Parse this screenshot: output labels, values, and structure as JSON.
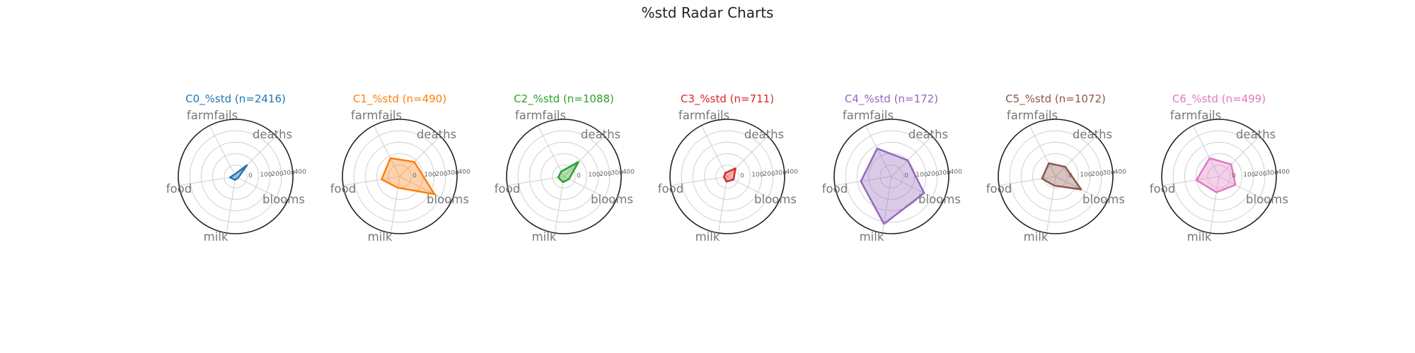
{
  "chart_data": {
    "type": "radar",
    "title": "%std Radar Charts",
    "axes": [
      "deaths",
      "farmfails",
      "food",
      "milk",
      "blooms"
    ],
    "r_ticks": [
      "0",
      "100",
      "200",
      "300",
      "400"
    ],
    "rlim": [
      -100,
      400
    ],
    "grid": true,
    "charts": [
      {
        "title": "C0_%std (n=2416)",
        "color": "#1f77b4",
        "values": {
          "deaths": 40,
          "farmfails": -80,
          "food": -50,
          "milk": -70,
          "blooms": -75
        }
      },
      {
        "title": "C1_%std (n=490)",
        "color": "#ff7f0e",
        "values": {
          "deaths": 80,
          "farmfails": 80,
          "food": 60,
          "milk": 0,
          "blooms": 240
        }
      },
      {
        "title": "C2_%std (n=1088)",
        "color": "#2ca02c",
        "values": {
          "deaths": 80,
          "farmfails": -50,
          "food": -50,
          "milk": -50,
          "blooms": -50
        }
      },
      {
        "title": "C3_%std (n=711)",
        "color": "#d62728",
        "values": {
          "deaths": 0,
          "farmfails": -65,
          "food": -70,
          "milk": -55,
          "blooms": -40
        }
      },
      {
        "title": "C4_%std (n=172)",
        "color": "#9467bd",
        "values": {
          "deaths": 100,
          "farmfails": 175,
          "food": 170,
          "milk": 320,
          "blooms": 220
        }
      },
      {
        "title": "C5_%std (n=1072)",
        "color": "#8c564b",
        "values": {
          "deaths": 20,
          "farmfails": 30,
          "food": 20,
          "milk": -20,
          "blooms": 150
        }
      },
      {
        "title": "C6_%std (n=499)",
        "color": "#e377c2",
        "values": {
          "deaths": 50,
          "farmfails": 80,
          "food": 100,
          "milk": 40,
          "blooms": 60
        }
      }
    ]
  }
}
